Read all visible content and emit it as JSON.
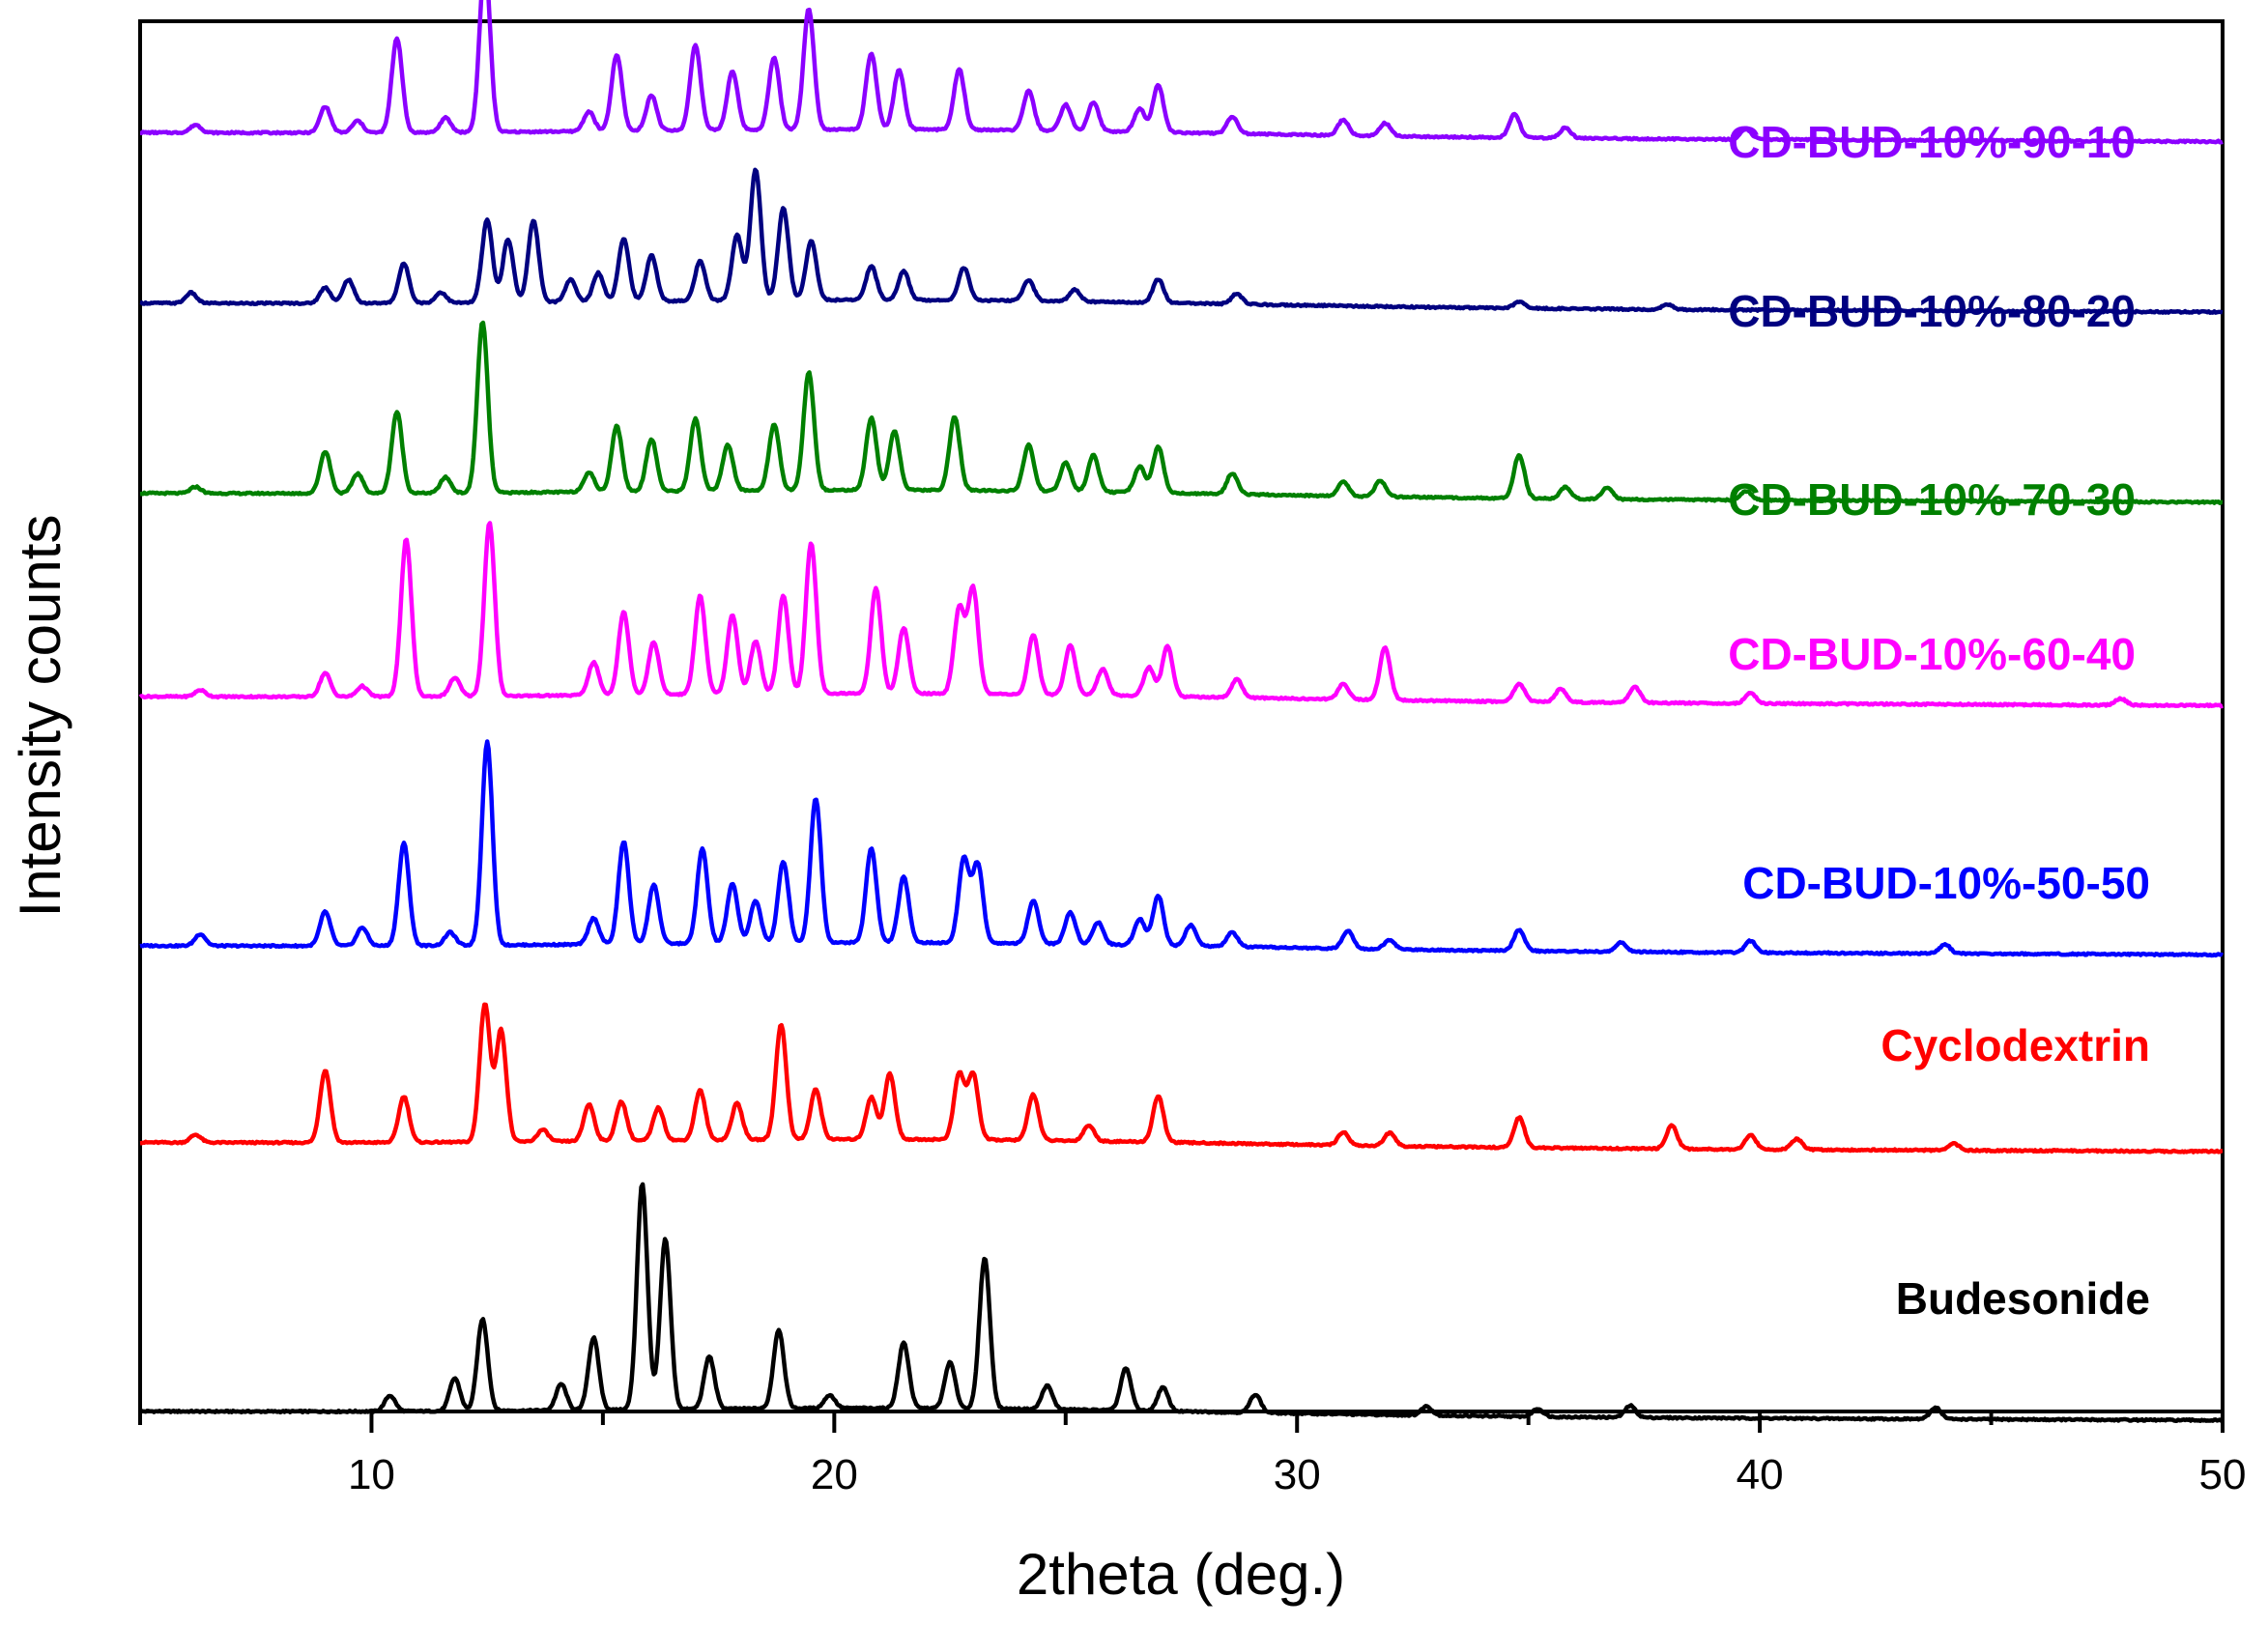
{
  "chart_data": {
    "type": "line",
    "title": "",
    "xlabel": "2theta (deg.)",
    "ylabel": "Intensity counts",
    "xlim": [
      5,
      50
    ],
    "ylim": [
      0,
      10.6
    ],
    "x_ticks": [
      10,
      20,
      30,
      40,
      50
    ],
    "y_ticks_shown": false,
    "grid": false,
    "layout": "stacked offset",
    "series": [
      {
        "name": "Budesonide",
        "color": "#000000",
        "baseline": 0.0,
        "peaks": [
          [
            10.4,
            0.12
          ],
          [
            11.8,
            0.25
          ],
          [
            12.4,
            0.7
          ],
          [
            14.1,
            0.2
          ],
          [
            14.8,
            0.55
          ],
          [
            15.85,
            1.72
          ],
          [
            16.35,
            1.3
          ],
          [
            17.3,
            0.4
          ],
          [
            18.8,
            0.6
          ],
          [
            19.9,
            0.1
          ],
          [
            21.5,
            0.5
          ],
          [
            22.5,
            0.35
          ],
          [
            23.25,
            1.15
          ],
          [
            24.6,
            0.18
          ],
          [
            26.3,
            0.32
          ],
          [
            27.1,
            0.18
          ],
          [
            29.1,
            0.14
          ],
          [
            32.8,
            0.07
          ],
          [
            35.2,
            0.06
          ],
          [
            37.2,
            0.09
          ],
          [
            43.8,
            0.09
          ]
        ]
      },
      {
        "name": "Cyclodextrin",
        "color": "#ff0000",
        "baseline": 2.05,
        "peaks": [
          [
            6.2,
            0.06
          ],
          [
            9.0,
            0.55
          ],
          [
            10.7,
            0.35
          ],
          [
            12.45,
            1.05
          ],
          [
            12.8,
            0.85
          ],
          [
            13.7,
            0.09
          ],
          [
            14.7,
            0.28
          ],
          [
            15.4,
            0.3
          ],
          [
            16.2,
            0.25
          ],
          [
            17.1,
            0.38
          ],
          [
            17.9,
            0.28
          ],
          [
            18.85,
            0.88
          ],
          [
            19.6,
            0.38
          ],
          [
            20.8,
            0.32
          ],
          [
            21.2,
            0.5
          ],
          [
            22.7,
            0.5
          ],
          [
            23.0,
            0.5
          ],
          [
            24.3,
            0.35
          ],
          [
            25.5,
            0.12
          ],
          [
            27.0,
            0.35
          ],
          [
            31.0,
            0.1
          ],
          [
            32.0,
            0.1
          ],
          [
            34.8,
            0.23
          ],
          [
            38.1,
            0.18
          ],
          [
            39.8,
            0.11
          ],
          [
            40.8,
            0.08
          ],
          [
            44.2,
            0.05
          ]
        ]
      },
      {
        "name": "CD-BUD-10%-50-50",
        "color": "#0000ff",
        "baseline": 3.55,
        "peaks": [
          [
            6.3,
            0.09
          ],
          [
            9.0,
            0.26
          ],
          [
            9.8,
            0.14
          ],
          [
            10.7,
            0.78
          ],
          [
            11.7,
            0.1
          ],
          [
            12.5,
            1.55
          ],
          [
            14.8,
            0.2
          ],
          [
            15.45,
            0.78
          ],
          [
            16.1,
            0.45
          ],
          [
            17.15,
            0.72
          ],
          [
            17.8,
            0.45
          ],
          [
            18.3,
            0.32
          ],
          [
            18.9,
            0.62
          ],
          [
            19.6,
            1.1
          ],
          [
            20.8,
            0.72
          ],
          [
            21.5,
            0.5
          ],
          [
            22.8,
            0.64
          ],
          [
            23.1,
            0.6
          ],
          [
            24.3,
            0.33
          ],
          [
            25.1,
            0.24
          ],
          [
            25.7,
            0.17
          ],
          [
            26.6,
            0.2
          ],
          [
            27.0,
            0.38
          ],
          [
            27.7,
            0.16
          ],
          [
            28.6,
            0.11
          ],
          [
            31.1,
            0.14
          ],
          [
            32.0,
            0.07
          ],
          [
            34.8,
            0.16
          ],
          [
            37.0,
            0.07
          ],
          [
            39.8,
            0.09
          ],
          [
            44.0,
            0.07
          ]
        ]
      },
      {
        "name": "CD-BUD-10%-60-40",
        "color": "#ff00ff",
        "baseline": 5.45,
        "peaks": [
          [
            6.3,
            0.05
          ],
          [
            9.0,
            0.18
          ],
          [
            9.8,
            0.08
          ],
          [
            10.75,
            1.2
          ],
          [
            11.8,
            0.14
          ],
          [
            12.55,
            1.32
          ],
          [
            14.8,
            0.25
          ],
          [
            15.45,
            0.63
          ],
          [
            16.1,
            0.4
          ],
          [
            17.1,
            0.75
          ],
          [
            17.8,
            0.6
          ],
          [
            18.3,
            0.4
          ],
          [
            18.9,
            0.75
          ],
          [
            19.5,
            1.15
          ],
          [
            20.9,
            0.8
          ],
          [
            21.5,
            0.5
          ],
          [
            22.7,
            0.65
          ],
          [
            23.0,
            0.8
          ],
          [
            24.3,
            0.45
          ],
          [
            25.1,
            0.38
          ],
          [
            25.8,
            0.2
          ],
          [
            26.8,
            0.22
          ],
          [
            27.2,
            0.38
          ],
          [
            28.7,
            0.14
          ],
          [
            31.0,
            0.12
          ],
          [
            31.9,
            0.4
          ],
          [
            34.8,
            0.14
          ],
          [
            35.7,
            0.1
          ],
          [
            37.3,
            0.12
          ],
          [
            39.8,
            0.08
          ],
          [
            47.8,
            0.05
          ]
        ]
      },
      {
        "name": "CD-BUD-10%-70-30",
        "color": "#008000",
        "baseline": 7.0,
        "peaks": [
          [
            6.2,
            0.05
          ],
          [
            9.0,
            0.32
          ],
          [
            9.7,
            0.15
          ],
          [
            10.55,
            0.62
          ],
          [
            11.6,
            0.12
          ],
          [
            12.4,
            1.3
          ],
          [
            14.7,
            0.15
          ],
          [
            15.3,
            0.5
          ],
          [
            16.05,
            0.4
          ],
          [
            17.0,
            0.55
          ],
          [
            17.7,
            0.35
          ],
          [
            18.7,
            0.5
          ],
          [
            19.45,
            0.9
          ],
          [
            20.8,
            0.55
          ],
          [
            21.3,
            0.45
          ],
          [
            22.6,
            0.56
          ],
          [
            24.2,
            0.35
          ],
          [
            25.0,
            0.22
          ],
          [
            25.6,
            0.28
          ],
          [
            26.6,
            0.2
          ],
          [
            27.0,
            0.35
          ],
          [
            28.6,
            0.16
          ],
          [
            31.0,
            0.11
          ],
          [
            31.8,
            0.12
          ],
          [
            34.8,
            0.33
          ],
          [
            35.8,
            0.09
          ],
          [
            36.7,
            0.09
          ],
          [
            39.7,
            0.07
          ]
        ]
      },
      {
        "name": "CD-BUD-10%-80-20",
        "color": "#000080",
        "baseline": 8.45,
        "peaks": [
          [
            6.1,
            0.08
          ],
          [
            9.0,
            0.12
          ],
          [
            9.5,
            0.18
          ],
          [
            10.7,
            0.3
          ],
          [
            11.5,
            0.08
          ],
          [
            12.5,
            0.63
          ],
          [
            12.95,
            0.48
          ],
          [
            13.5,
            0.62
          ],
          [
            14.3,
            0.17
          ],
          [
            14.9,
            0.22
          ],
          [
            15.45,
            0.48
          ],
          [
            16.05,
            0.35
          ],
          [
            17.1,
            0.3
          ],
          [
            17.9,
            0.5
          ],
          [
            18.3,
            1.0
          ],
          [
            18.9,
            0.7
          ],
          [
            19.5,
            0.45
          ],
          [
            20.8,
            0.26
          ],
          [
            21.5,
            0.22
          ],
          [
            22.8,
            0.25
          ],
          [
            24.2,
            0.16
          ],
          [
            25.2,
            0.09
          ],
          [
            27.0,
            0.18
          ],
          [
            28.7,
            0.08
          ],
          [
            34.8,
            0.05
          ],
          [
            38.0,
            0.04
          ]
        ]
      },
      {
        "name": "CD-BUD-10%-90-10",
        "color": "#8b00ff",
        "baseline": 9.75,
        "peaks": [
          [
            6.2,
            0.06
          ],
          [
            9.0,
            0.2
          ],
          [
            9.7,
            0.09
          ],
          [
            10.55,
            0.72
          ],
          [
            11.6,
            0.11
          ],
          [
            12.45,
            1.3
          ],
          [
            14.7,
            0.15
          ],
          [
            15.3,
            0.58
          ],
          [
            16.05,
            0.27
          ],
          [
            17.0,
            0.65
          ],
          [
            17.8,
            0.45
          ],
          [
            18.7,
            0.55
          ],
          [
            19.45,
            0.92
          ],
          [
            20.8,
            0.58
          ],
          [
            21.4,
            0.45
          ],
          [
            22.7,
            0.46
          ],
          [
            24.2,
            0.3
          ],
          [
            25.0,
            0.2
          ],
          [
            25.6,
            0.22
          ],
          [
            26.6,
            0.18
          ],
          [
            27.0,
            0.36
          ],
          [
            28.6,
            0.13
          ],
          [
            31.0,
            0.12
          ],
          [
            31.9,
            0.1
          ],
          [
            34.7,
            0.18
          ],
          [
            35.8,
            0.08
          ],
          [
            39.7,
            0.08
          ]
        ]
      }
    ]
  },
  "colors": {
    "axis": "#000000",
    "background": "#ffffff"
  }
}
